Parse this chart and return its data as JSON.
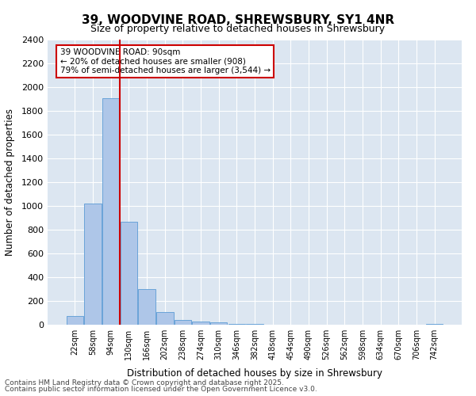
{
  "title_line1": "39, WOODVINE ROAD, SHREWSBURY, SY1 4NR",
  "title_line2": "Size of property relative to detached houses in Shrewsbury",
  "xlabel": "Distribution of detached houses by size in Shrewsbury",
  "ylabel": "Number of detached properties",
  "categories": [
    "22sqm",
    "58sqm",
    "94sqm",
    "130sqm",
    "166sqm",
    "202sqm",
    "238sqm",
    "274sqm",
    "310sqm",
    "346sqm",
    "382sqm",
    "418sqm",
    "454sqm",
    "490sqm",
    "526sqm",
    "562sqm",
    "598sqm",
    "634sqm",
    "670sqm",
    "706sqm",
    "742sqm"
  ],
  "values": [
    75,
    1020,
    1910,
    870,
    300,
    110,
    40,
    30,
    20,
    5,
    5,
    3,
    2,
    1,
    1,
    1,
    0,
    0,
    0,
    0,
    5
  ],
  "bar_color": "#aec6e8",
  "bar_edge_color": "#5b9bd5",
  "vline_x": 2,
  "vline_color": "#cc0000",
  "annotation_title": "39 WOODVINE ROAD: 90sqm",
  "annotation_line2": "← 20% of detached houses are smaller (908)",
  "annotation_line3": "79% of semi-detached houses are larger (3,544) →",
  "annotation_box_color": "#cc0000",
  "ylim": [
    0,
    2400
  ],
  "yticks": [
    0,
    200,
    400,
    600,
    800,
    1000,
    1200,
    1400,
    1600,
    1800,
    2000,
    2200,
    2400
  ],
  "footer_line1": "Contains HM Land Registry data © Crown copyright and database right 2025.",
  "footer_line2": "Contains public sector information licensed under the Open Government Licence v3.0.",
  "bg_color": "#dce6f1",
  "plot_bg_color": "#dce6f1",
  "fig_bg_color": "#ffffff"
}
